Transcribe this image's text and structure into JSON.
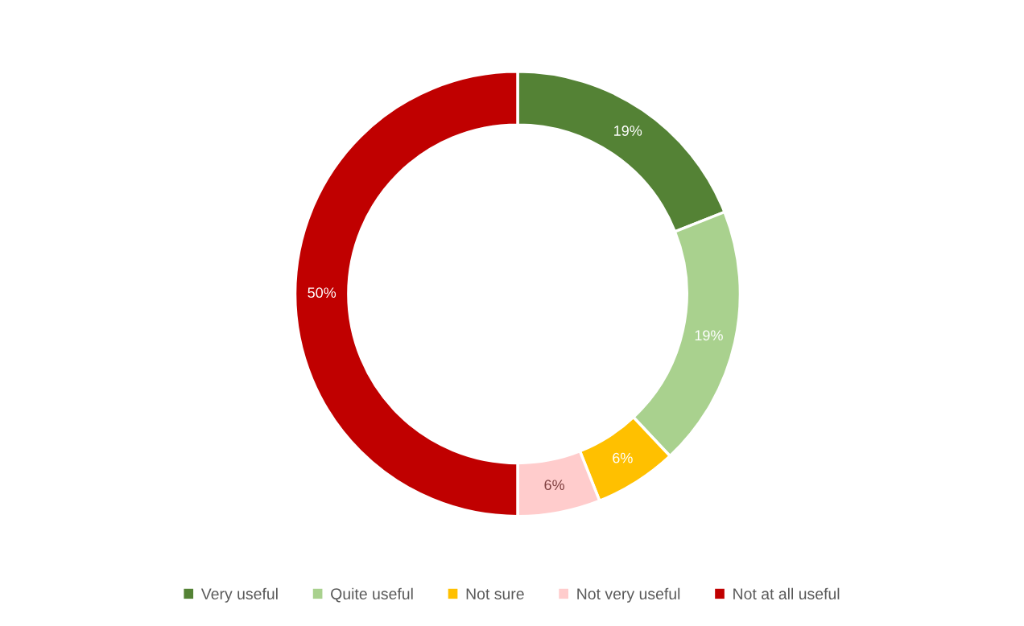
{
  "chart_data": {
    "type": "donut",
    "categories": [
      "Very useful",
      "Quite useful",
      "Not sure",
      "Not very useful",
      "Not at all useful"
    ],
    "values": [
      19,
      19,
      6,
      6,
      50
    ],
    "colors": [
      "#548235",
      "#a9d18e",
      "#ffc000",
      "#ffcccc",
      "#c00000"
    ],
    "value_labels": [
      "19%",
      "19%",
      "6%",
      "6%",
      "50%"
    ],
    "legend": "bottom"
  }
}
